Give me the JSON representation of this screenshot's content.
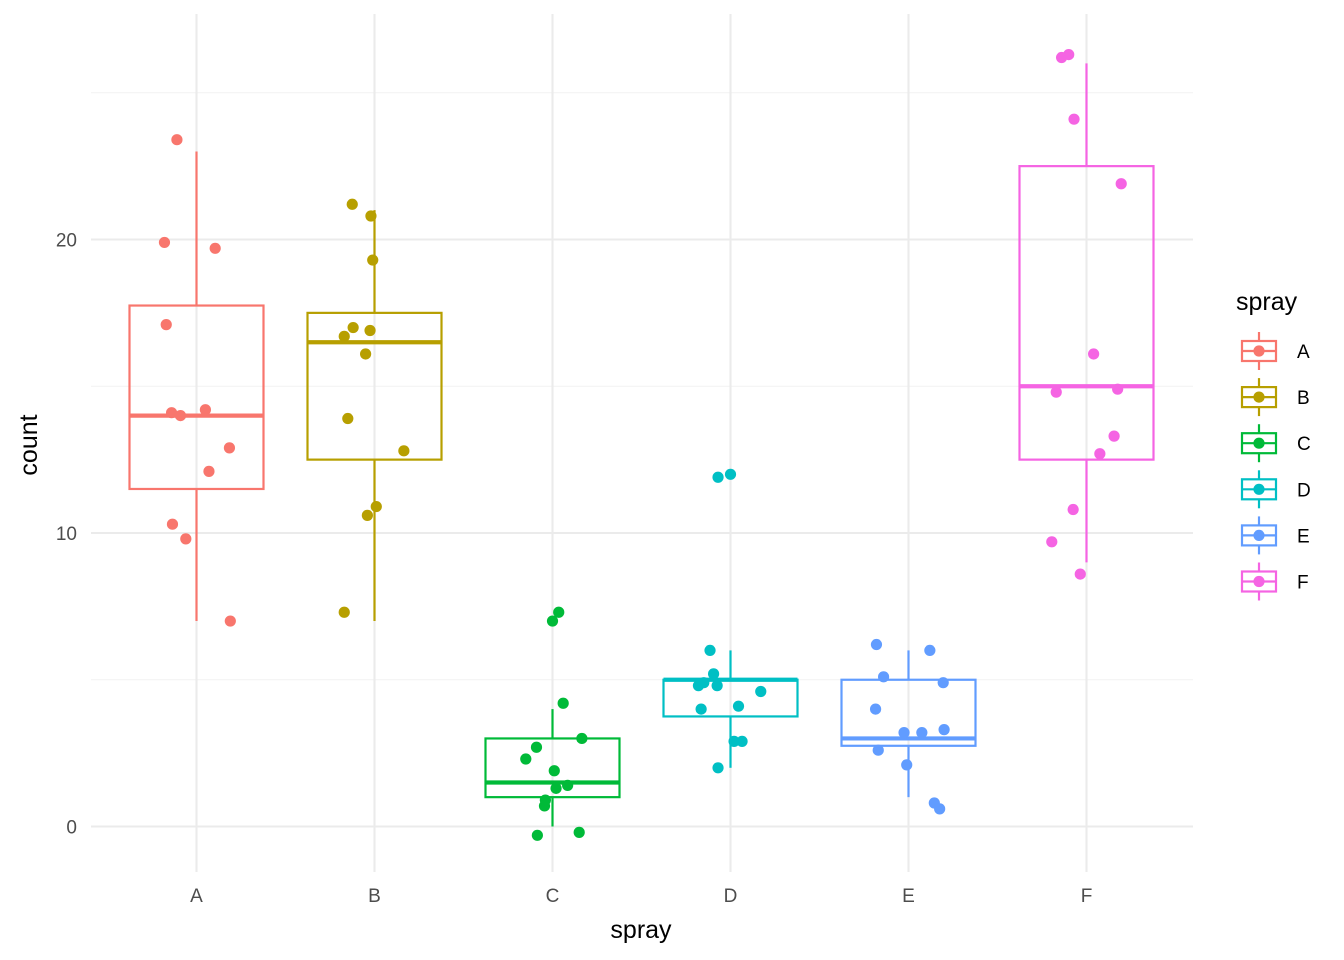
{
  "chart_data": {
    "type": "boxplot",
    "xlabel": "spray",
    "ylabel": "count",
    "categories": [
      "A",
      "B",
      "C",
      "D",
      "E",
      "F"
    ],
    "ylim": [
      -1.5,
      28.0
    ],
    "yticks": [
      0,
      10,
      20
    ],
    "grid": true,
    "legend": {
      "title": "spray",
      "position": "right"
    },
    "colors": {
      "A": "#F8766D",
      "B": "#B79F00",
      "C": "#00BA38",
      "D": "#00BFC4",
      "E": "#619CFF",
      "F": "#F564E3"
    },
    "boxes": [
      {
        "category": "A",
        "min": 7,
        "q1": 11.5,
        "median": 14,
        "q3": 17.75,
        "max": 23
      },
      {
        "category": "B",
        "min": 7,
        "q1": 12.5,
        "median": 16.5,
        "q3": 17.5,
        "max": 21
      },
      {
        "category": "C",
        "min": 0,
        "q1": 1,
        "median": 1.5,
        "q3": 3,
        "max": 4
      },
      {
        "category": "D",
        "min": 2,
        "q1": 3.75,
        "median": 5,
        "q3": 5,
        "max": 6
      },
      {
        "category": "E",
        "min": 1,
        "q1": 2.75,
        "median": 3,
        "q3": 5,
        "max": 6
      },
      {
        "category": "F",
        "min": 9,
        "q1": 12.5,
        "median": 15,
        "q3": 22.5,
        "max": 26
      }
    ],
    "points": {
      "A": [
        [
          -0.36,
          19.9
        ],
        [
          -0.34,
          17.1
        ],
        [
          -0.28,
          14.1
        ],
        [
          -0.27,
          10.3
        ],
        [
          -0.22,
          23.4
        ],
        [
          -0.18,
          14.0
        ],
        [
          -0.12,
          9.8
        ],
        [
          0.1,
          14.2
        ],
        [
          0.14,
          12.1
        ],
        [
          0.21,
          19.7
        ],
        [
          0.37,
          12.9
        ],
        [
          0.38,
          7.0
        ]
      ],
      "B": [
        [
          -0.34,
          7.3
        ],
        [
          -0.34,
          16.7
        ],
        [
          -0.3,
          13.9
        ],
        [
          -0.25,
          21.2
        ],
        [
          -0.24,
          17.0
        ],
        [
          -0.08,
          10.6
        ],
        [
          -0.1,
          16.1
        ],
        [
          -0.05,
          16.9
        ],
        [
          -0.04,
          20.8
        ],
        [
          -0.02,
          19.3
        ],
        [
          0.02,
          10.9
        ],
        [
          0.33,
          12.8
        ]
      ],
      "C": [
        [
          -0.3,
          2.3
        ],
        [
          -0.18,
          2.7
        ],
        [
          -0.17,
          -0.3
        ],
        [
          -0.09,
          0.7
        ],
        [
          -0.08,
          0.9
        ],
        [
          0.0,
          7.0
        ],
        [
          0.02,
          1.9
        ],
        [
          0.04,
          1.3
        ],
        [
          0.07,
          7.3
        ],
        [
          0.12,
          4.2
        ],
        [
          0.17,
          1.4
        ],
        [
          0.3,
          -0.2
        ],
        [
          0.33,
          3.0
        ]
      ],
      "D": [
        [
          -0.36,
          4.8
        ],
        [
          -0.33,
          4.0
        ],
        [
          -0.3,
          4.9
        ],
        [
          -0.23,
          6.0
        ],
        [
          -0.19,
          5.2
        ],
        [
          -0.15,
          4.8
        ],
        [
          -0.14,
          2.0
        ],
        [
          -0.14,
          11.9
        ],
        [
          0.0,
          12.0
        ],
        [
          0.04,
          2.9
        ],
        [
          0.09,
          4.1
        ],
        [
          0.13,
          2.9
        ],
        [
          0.34,
          4.6
        ]
      ],
      "E": [
        [
          -0.37,
          4.0
        ],
        [
          -0.36,
          6.2
        ],
        [
          -0.34,
          2.6
        ],
        [
          -0.28,
          5.1
        ],
        [
          -0.05,
          3.2
        ],
        [
          -0.02,
          2.1
        ],
        [
          0.15,
          3.2
        ],
        [
          0.24,
          6.0
        ],
        [
          0.29,
          0.8
        ],
        [
          0.35,
          0.6
        ],
        [
          0.39,
          4.9
        ],
        [
          0.4,
          3.3
        ]
      ],
      "F": [
        [
          -0.39,
          9.7
        ],
        [
          -0.34,
          14.8
        ],
        [
          -0.28,
          26.2
        ],
        [
          -0.2,
          26.3
        ],
        [
          -0.14,
          24.1
        ],
        [
          -0.15,
          10.8
        ],
        [
          -0.07,
          8.6
        ],
        [
          0.08,
          16.1
        ],
        [
          0.15,
          12.7
        ],
        [
          0.31,
          13.3
        ],
        [
          0.35,
          14.9
        ],
        [
          0.39,
          21.9
        ]
      ]
    }
  }
}
